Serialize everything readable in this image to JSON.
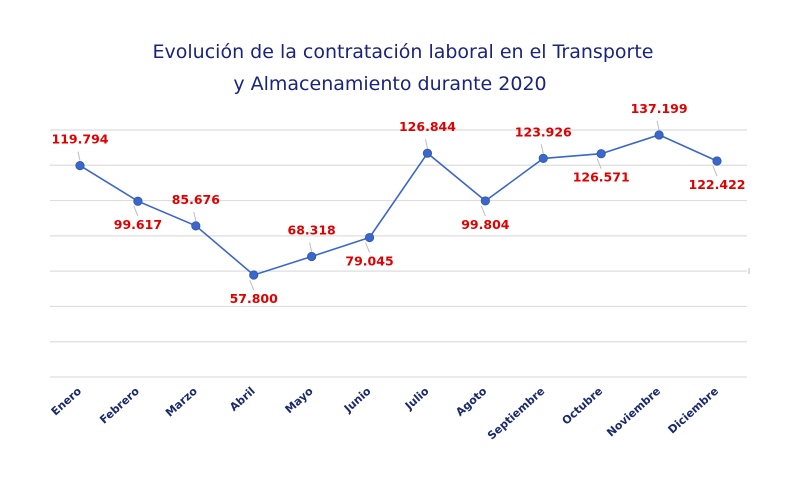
{
  "chart_data": {
    "type": "line",
    "title": [
      "Evolución de la contratación laboral en el Transporte",
      "y Almacenamiento durante 2020"
    ],
    "xlabel": "",
    "ylabel": "",
    "categories": [
      "Enero",
      "Febrero",
      "Marzo",
      "Abril",
      "Mayo",
      "Junio",
      "Julio",
      "Agoto",
      "Septiembre",
      "Octubre",
      "Noviembre",
      "Diciembre"
    ],
    "series": [
      {
        "name": "Contratación",
        "values": [
          119794,
          99617,
          85676,
          57800,
          68318,
          79045,
          126844,
          99804,
          123926,
          126571,
          137199,
          122422
        ],
        "labels": [
          "119.794",
          "99.617",
          "85.676",
          "57.800",
          "68.318",
          "79.045",
          "126.844",
          "99.804",
          "123.926",
          "126.571",
          "137.199",
          "122.422"
        ],
        "label_positions": [
          "above",
          "below",
          "above",
          "below",
          "above",
          "below",
          "above",
          "below",
          "above",
          "below",
          "above",
          "below"
        ],
        "color": "#3a67c9"
      }
    ],
    "ylim": [
      0,
      140000
    ],
    "ytick_step": 20000,
    "y_tick_labels_visible": false,
    "grid": true,
    "legend": "none",
    "colors": {
      "title": "#1a237e",
      "data_label": "#e00000",
      "line": "#3a67c9",
      "marker": "#3a67c9",
      "grid": "#dedede",
      "axis_label": "#1a2a6c"
    }
  }
}
